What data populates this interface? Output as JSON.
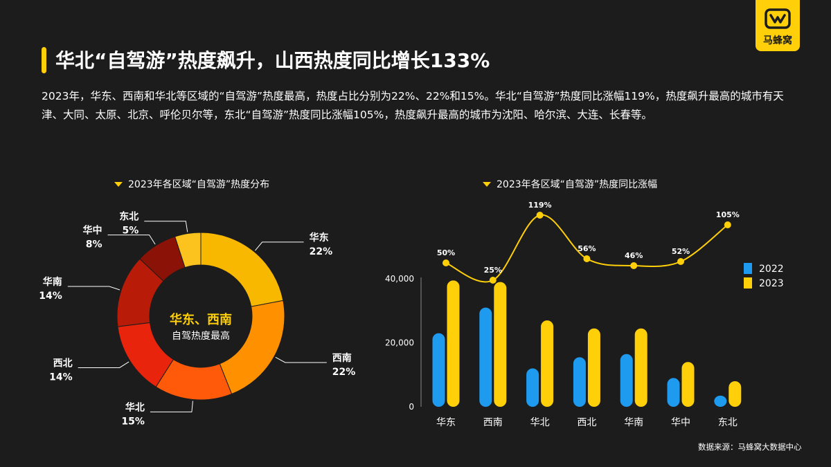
{
  "logo": {
    "text": "马蜂窝"
  },
  "header": {
    "title": "华北“自驾游”热度飙升，山西热度同比增长133%",
    "paragraph": "2023年，华东、西南和华北等区域的“自驾游”热度最高，热度占比分别为22%、22%和15%。华北“自驾游”热度同比涨幅119%，热度飙升最高的城市有天津、大同、太原、北京、呼伦贝尔等，东北“自驾游”热度同比涨幅105%，热度飙升最高的城市为沈阳、哈尔滨、大连、长春等。"
  },
  "source": "数据来源：马蜂窝大数据中心",
  "colors": {
    "accent": "#ffd00a",
    "series_2022": "#1e9bef",
    "series_2023": "#ffd00a",
    "background": "#1c1c1c"
  },
  "chart_data": [
    {
      "type": "pie",
      "title": "2023年各区域“自驾游”热度分布",
      "center_text": {
        "line1": "华东、西南",
        "line2": "自驾热度最高"
      },
      "slices": [
        {
          "label": "华东",
          "value": 22,
          "display": "22%",
          "color": "#f8b800"
        },
        {
          "label": "西南",
          "value": 22,
          "display": "22%",
          "color": "#ff9000"
        },
        {
          "label": "华北",
          "value": 15,
          "display": "15%",
          "color": "#ff5a0a"
        },
        {
          "label": "西北",
          "value": 14,
          "display": "14%",
          "color": "#e8240c"
        },
        {
          "label": "华南",
          "value": 14,
          "display": "14%",
          "color": "#b81c08"
        },
        {
          "label": "华中",
          "value": 8,
          "display": "8%",
          "color": "#8a1206"
        },
        {
          "label": "东北",
          "value": 5,
          "display": "5%",
          "color": "#fcc21e"
        }
      ]
    },
    {
      "type": "bar",
      "title": "2023年各区域“自驾游”热度同比涨幅",
      "categories": [
        "华东",
        "西南",
        "华北",
        "西北",
        "华南",
        "华中",
        "东北"
      ],
      "series": [
        {
          "name": "2022",
          "values": [
            23000,
            31000,
            12000,
            15500,
            16500,
            9000,
            3500
          ]
        },
        {
          "name": "2023",
          "values": [
            39500,
            39000,
            27000,
            24500,
            24500,
            14000,
            8000
          ]
        }
      ],
      "yticks": [
        "0",
        "20,000",
        "40,000"
      ],
      "ylim": [
        0,
        40000
      ],
      "line": {
        "type": "line",
        "values": [
          50,
          25,
          119,
          56,
          46,
          52,
          105
        ],
        "labels": [
          "50%",
          "25%",
          "119%",
          "56%",
          "46%",
          "52%",
          "105%"
        ]
      }
    }
  ]
}
